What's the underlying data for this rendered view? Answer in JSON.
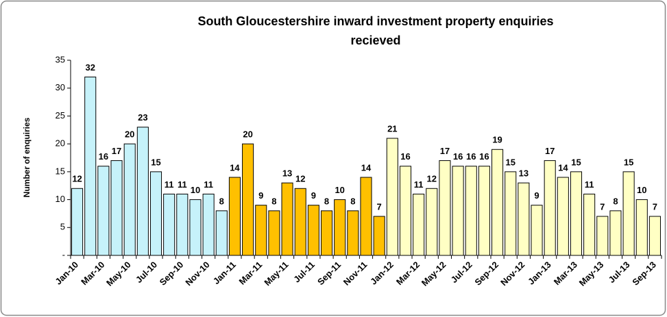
{
  "chart_data": {
    "type": "bar",
    "title": [
      "South Gloucestershire inward investment property enquiries",
      "recieved"
    ],
    "y_label": "Number of enquiries",
    "categories": [
      "Jan-10",
      null,
      "Mar-10",
      null,
      "May-10",
      null,
      "Jul-10",
      null,
      "Sep-10",
      null,
      "Nov-10",
      null,
      "Jan-11",
      null,
      "Mar-11",
      null,
      "May-11",
      null,
      "Jul-11",
      null,
      "Sep-11",
      null,
      "Nov-11",
      null,
      "Jan-12",
      null,
      "Mar-12",
      null,
      "May-12",
      null,
      "Jul-12",
      null,
      "Sep-12",
      null,
      "Nov-12",
      null,
      "Jan-13",
      null,
      "Mar-13",
      null,
      "May-13",
      null,
      "Jul-13",
      null,
      "Sep-13"
    ],
    "values": [
      12,
      32,
      16,
      17,
      20,
      23,
      15,
      11,
      11,
      10,
      11,
      8,
      14,
      20,
      9,
      8,
      13,
      12,
      9,
      8,
      10,
      8,
      14,
      7,
      21,
      16,
      11,
      12,
      17,
      16,
      16,
      16,
      19,
      15,
      13,
      9,
      17,
      14,
      15,
      11,
      7,
      8,
      15,
      10,
      7
    ],
    "colors": [
      "#c6f2fa",
      "#c6f2fa",
      "#c6f2fa",
      "#c6f2fa",
      "#c6f2fa",
      "#c6f2fa",
      "#c6f2fa",
      "#c6f2fa",
      "#c6f2fa",
      "#c6f2fa",
      "#c6f2fa",
      "#c6f2fa",
      "#ffc000",
      "#ffc000",
      "#ffc000",
      "#ffc000",
      "#ffc000",
      "#ffc000",
      "#ffc000",
      "#ffc000",
      "#ffc000",
      "#ffc000",
      "#ffc000",
      "#ffc000",
      "#ffffc4",
      "#ffffc4",
      "#ffffc4",
      "#ffffc4",
      "#ffffc4",
      "#ffffc4",
      "#ffffc4",
      "#ffffc4",
      "#ffffc4",
      "#ffffc4",
      "#ffffc4",
      "#ffffc4",
      "#ffffc4",
      "#ffffc4",
      "#ffffc4",
      "#ffffc4",
      "#ffffc4",
      "#ffffc4",
      "#ffffc4",
      "#ffffc4",
      "#ffffc4"
    ],
    "ylim": [
      0,
      35
    ],
    "yticks": [
      {
        "value": 0,
        "label": "-"
      },
      5,
      10,
      15,
      20,
      25,
      30,
      35
    ],
    "grid": false
  }
}
